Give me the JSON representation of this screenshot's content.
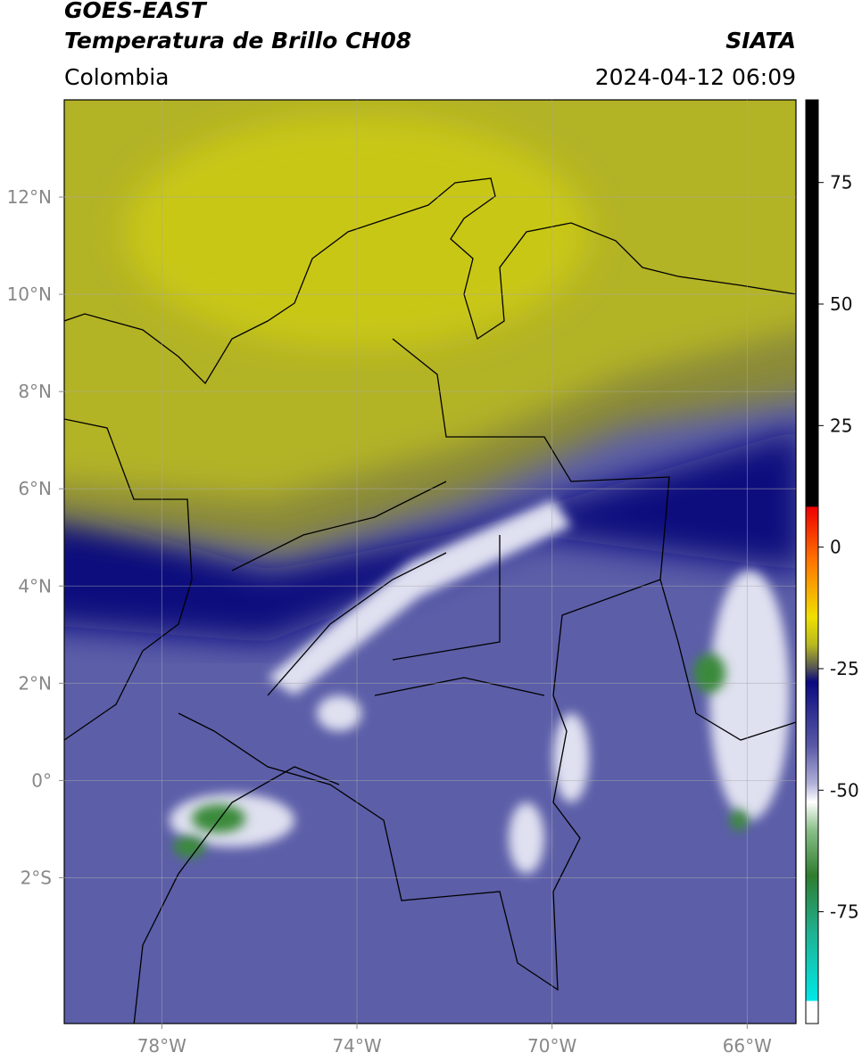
{
  "header": {
    "title": "GOES-EAST",
    "subtitle": "Temperatura de Brillo CH08",
    "source": "SIATA",
    "region": "Colombia",
    "datetime": "2024-04-12 06:09"
  },
  "map": {
    "xlim": [
      -80,
      -65
    ],
    "ylim": [
      -5,
      14
    ],
    "xticks": [
      {
        "value": -78,
        "label": "78°W"
      },
      {
        "value": -74,
        "label": "74°W"
      },
      {
        "value": -70,
        "label": "70°W"
      },
      {
        "value": -66,
        "label": "66°W"
      }
    ],
    "yticks": [
      {
        "value": 12,
        "label": "12°N"
      },
      {
        "value": 10,
        "label": "10°N"
      },
      {
        "value": 8,
        "label": "8°N"
      },
      {
        "value": 6,
        "label": "6°N"
      },
      {
        "value": 4,
        "label": "4°N"
      },
      {
        "value": 2,
        "label": "2°N"
      },
      {
        "value": 0,
        "label": "0°"
      },
      {
        "value": -2,
        "label": "2°S"
      }
    ]
  },
  "colorbar": {
    "lim": [
      -98,
      92
    ],
    "ticks": [
      75,
      50,
      25,
      0,
      -25,
      -50,
      -75
    ]
  }
}
